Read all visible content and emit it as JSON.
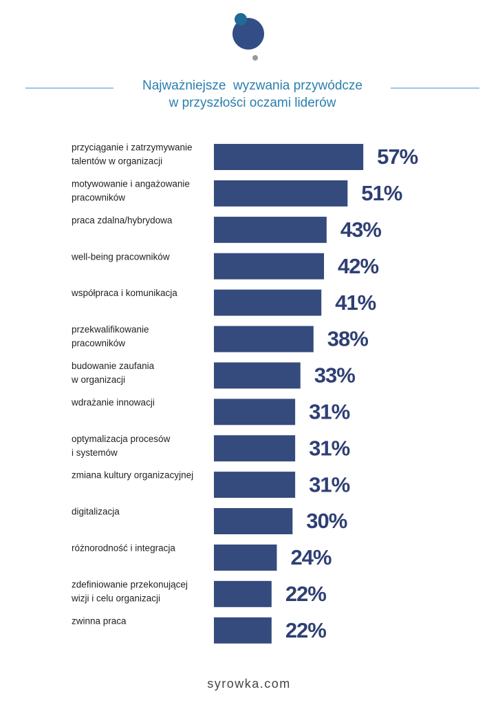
{
  "chart_data": {
    "type": "bar",
    "orientation": "horizontal",
    "title": [
      "Najważniejsze  wyzwania przywódcze",
      "w przyszłości oczami liderów"
    ],
    "categories": [
      [
        "przyciąganie i zatrzymywanie",
        "talentów w organizacji"
      ],
      [
        "motywowanie i angażowanie",
        "pracowników"
      ],
      [
        "praca zdalna/hybrydowa"
      ],
      [
        "well-being pracowników"
      ],
      [
        "współpraca i komunikacja"
      ],
      [
        "przekwalifikowanie",
        "pracowników"
      ],
      [
        "budowanie zaufania",
        "w organizacji"
      ],
      [
        "wdrażanie innowacji"
      ],
      [
        "optymalizacja procesów",
        "i systemów"
      ],
      [
        "zmiana kultury organizacyjnej"
      ],
      [
        "digitalizacja"
      ],
      [
        "różnorodność i integracja"
      ],
      [
        "zdefiniowanie przekonującej",
        "wizji i celu organizacji"
      ],
      [
        "zwinna praca"
      ]
    ],
    "values": [
      57,
      51,
      43,
      42,
      41,
      38,
      33,
      31,
      31,
      31,
      30,
      24,
      22,
      22
    ],
    "value_labels": [
      "57%",
      "51%",
      "43%",
      "42%",
      "41%",
      "38%",
      "33%",
      "31%",
      "31%",
      "31%",
      "30%",
      "24%",
      "22%",
      "22%"
    ],
    "color": "#354a7d",
    "footer": "syrowka.com"
  }
}
